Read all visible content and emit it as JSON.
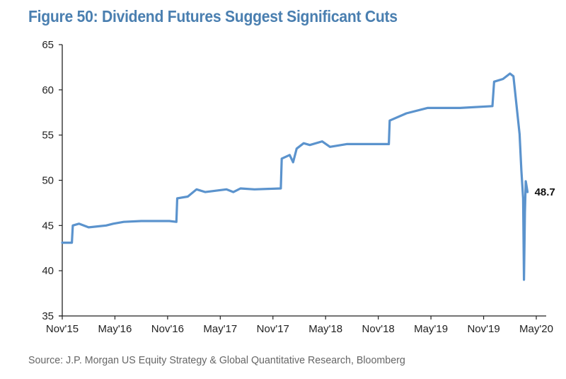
{
  "title": "Figure 50: Dividend Futures Suggest Significant Cuts",
  "source": "Source: J.P. Morgan US Equity Strategy & Global Quantitative Research, Bloomberg",
  "colors": {
    "title": "#4a7fb0",
    "line": "#5b93cd",
    "axis": "#222222",
    "source": "#666666"
  },
  "chart_data": {
    "type": "line",
    "title": "Figure 50: Dividend Futures Suggest Significant Cuts",
    "xlabel": "",
    "ylabel": "",
    "x_unit": "months since Nov 2015",
    "xlim": [
      0,
      55
    ],
    "ylim": [
      35,
      65
    ],
    "grid": false,
    "legend": "none",
    "y_ticks": [
      35,
      40,
      45,
      50,
      55,
      60,
      65
    ],
    "x_ticks": [
      {
        "value": 0,
        "label": "Nov'15"
      },
      {
        "value": 6,
        "label": "May'16"
      },
      {
        "value": 12,
        "label": "Nov'16"
      },
      {
        "value": 18,
        "label": "May'17"
      },
      {
        "value": 24,
        "label": "Nov'17"
      },
      {
        "value": 30,
        "label": "May'18"
      },
      {
        "value": 36,
        "label": "Nov'18"
      },
      {
        "value": 42,
        "label": "May'19"
      },
      {
        "value": 48,
        "label": "Nov'19"
      },
      {
        "value": 54,
        "label": "May'20"
      }
    ],
    "series": [
      {
        "name": "Dividend Futures",
        "x": [
          0,
          1.1,
          1.2,
          1.9,
          3.0,
          4.0,
          5.0,
          5.8,
          7.0,
          9.0,
          12.2,
          13.0,
          13.1,
          14.3,
          15.3,
          16.3,
          18.7,
          19.5,
          20.3,
          21.9,
          24.9,
          25.0,
          25.9,
          26.3,
          26.7,
          27.5,
          28.2,
          29.6,
          30.5,
          32.4,
          37.2,
          37.3,
          39.2,
          41.6,
          45.3,
          49.0,
          49.2,
          50.2,
          51.0,
          51.4,
          52.1,
          52.3,
          52.5,
          52.6,
          52.7,
          52.8,
          53.0
        ],
        "y": [
          43.1,
          43.1,
          45.0,
          45.2,
          44.8,
          44.9,
          45.0,
          45.2,
          45.4,
          45.5,
          45.5,
          45.4,
          48.0,
          48.2,
          49.0,
          48.7,
          49.0,
          48.7,
          49.1,
          49.0,
          49.1,
          52.4,
          52.8,
          52.0,
          53.5,
          54.1,
          53.9,
          54.3,
          53.7,
          54.0,
          54.0,
          56.6,
          57.4,
          58.0,
          58.0,
          58.2,
          60.9,
          61.2,
          61.8,
          61.5,
          55.1,
          51.1,
          48.0,
          39.0,
          46.4,
          49.9,
          48.7
        ]
      }
    ],
    "annotations": [
      {
        "text": "48.7",
        "x": 53.0,
        "y": 48.7
      }
    ]
  }
}
